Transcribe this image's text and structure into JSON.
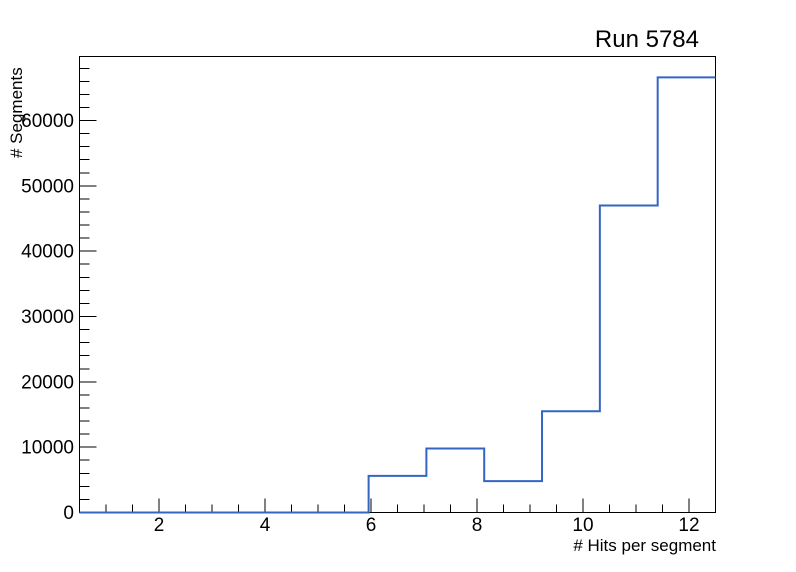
{
  "window": {
    "background_color": "#ffffff",
    "axis_color": "#000000",
    "text_color": "#000000"
  },
  "chart_data": {
    "type": "line",
    "style": "step-histogram (ROOT TH1 outline)",
    "title": "Run 5784",
    "xlabel": "# Hits per segment",
    "ylabel": "# Segments",
    "xlim": [
      0.5,
      12.5
    ],
    "ylim": [
      0,
      69800
    ],
    "grid": false,
    "legend": null,
    "line_color": "#3565c2",
    "bin_edges": [
      0.5,
      1.591,
      2.682,
      3.773,
      4.864,
      5.955,
      7.045,
      8.136,
      9.227,
      10.318,
      11.409,
      12.5
    ],
    "values": [
      0,
      0,
      0,
      0,
      0,
      5600,
      9800,
      4800,
      15500,
      47000,
      66600
    ],
    "x_major_ticks": [
      2,
      4,
      6,
      8,
      10,
      12
    ],
    "x_tick_labels": [
      "2",
      "4",
      "6",
      "8",
      "10",
      "12"
    ],
    "x_minor_tick_step": 0.5,
    "y_major_ticks": [
      0,
      10000,
      20000,
      30000,
      40000,
      50000,
      60000
    ],
    "y_tick_labels": [
      "0",
      "10000",
      "20000",
      "30000",
      "40000",
      "50000",
      "60000"
    ],
    "y_minor_tick_step": 2000
  }
}
